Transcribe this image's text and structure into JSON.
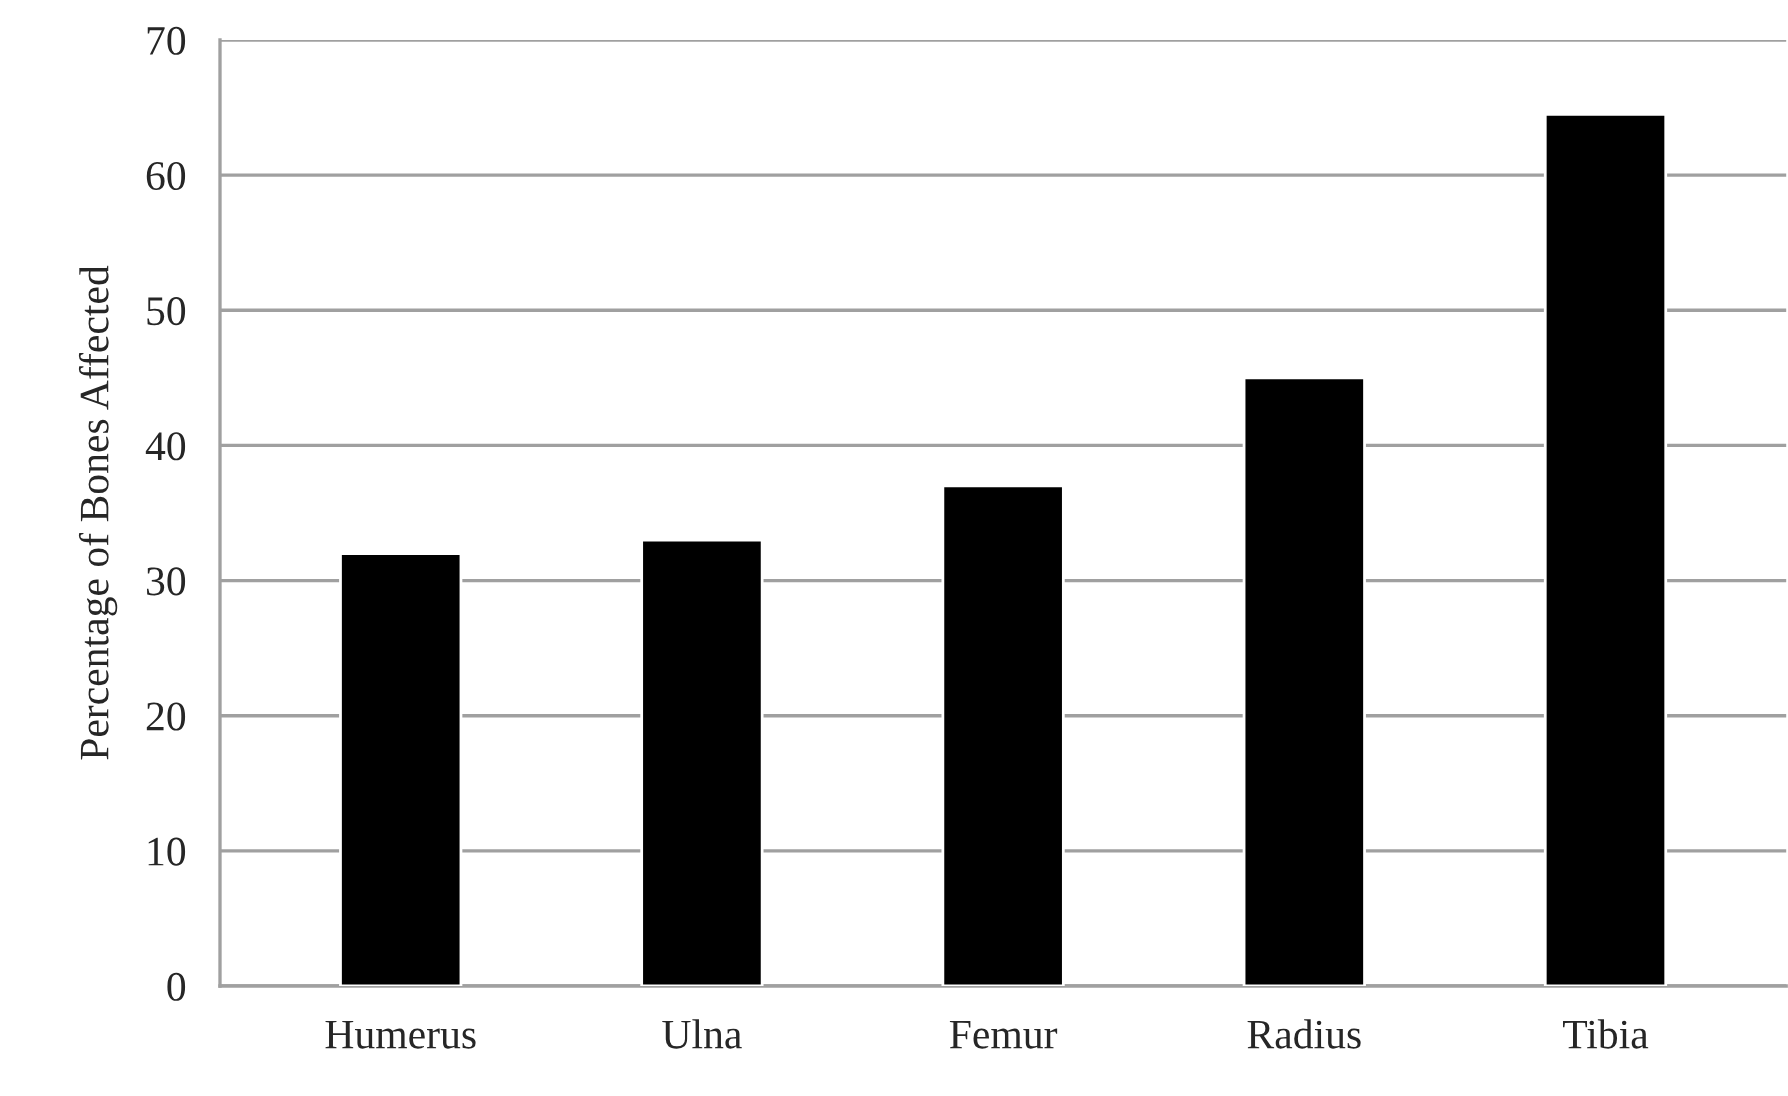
{
  "chart_data": {
    "type": "bar",
    "ylabel": "Percentage of Bones Affected",
    "categories": [
      "Humerus",
      "Ulna",
      "Femur",
      "Radius",
      "Tibia"
    ],
    "values": [
      32,
      33,
      37,
      45,
      64.5
    ],
    "color": "#000000",
    "ylim": [
      0,
      70
    ],
    "yticks": [
      0,
      10,
      20,
      30,
      40,
      50,
      60,
      70
    ],
    "grid": "y"
  }
}
